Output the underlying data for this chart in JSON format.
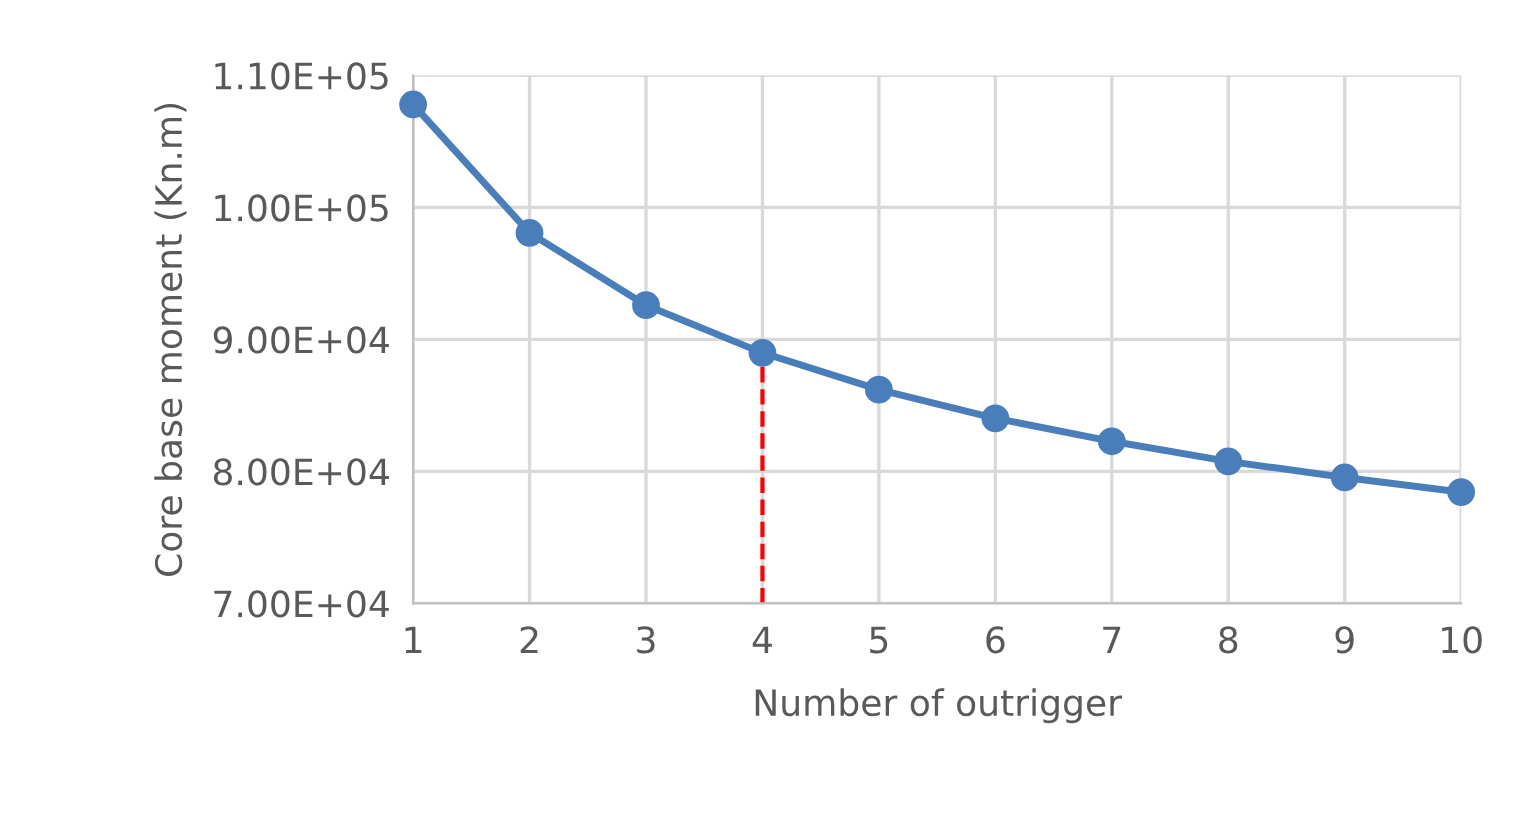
{
  "chart_data": {
    "type": "line",
    "xlabel": "Number of outrigger",
    "ylabel": "Core base moment (Kn.m)",
    "x": [
      1,
      2,
      3,
      4,
      5,
      6,
      7,
      8,
      9,
      10
    ],
    "series": [
      {
        "color": "#4a7ebb",
        "values": [
          107800,
          98070,
          92590,
          88980,
          86190,
          84020,
          82280,
          80760,
          79540,
          78430
        ]
      }
    ],
    "xlim": [
      1,
      10
    ],
    "xticks": [
      1,
      2,
      3,
      4,
      5,
      6,
      7,
      8,
      9,
      10
    ],
    "ylim": [
      70000,
      110000
    ],
    "yticks": [
      {
        "value": 70000,
        "label": "7.00E+04"
      },
      {
        "value": 80000,
        "label": "8.00E+04"
      },
      {
        "value": 90000,
        "label": "9.00E+04"
      },
      {
        "value": 100000,
        "label": "1.00E+05"
      },
      {
        "value": 110000,
        "label": "1.10E+05"
      }
    ],
    "ref_lines": [
      {
        "axis": "x",
        "value": 4,
        "color": "#ff0000",
        "line_style": "dashed"
      }
    ],
    "grid": true,
    "marker": "circle",
    "line_style": "solid"
  }
}
